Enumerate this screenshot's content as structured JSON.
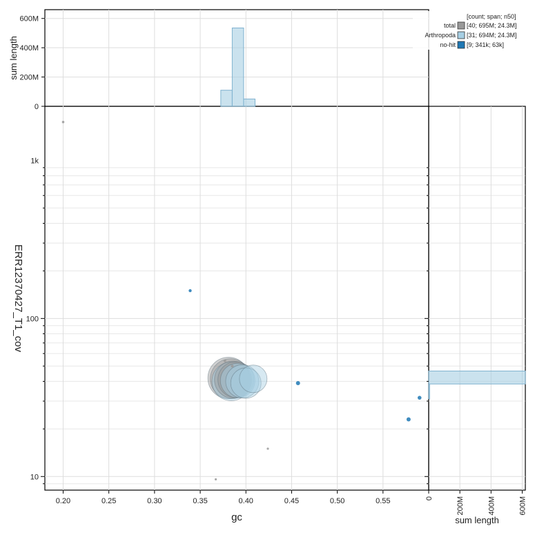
{
  "chart_data": {
    "type": "scatter",
    "xlabel": "gc",
    "ylabel": "ERR12370427_T1_cov",
    "x_ticks": [
      "0.20",
      "0.25",
      "0.30",
      "0.35",
      "0.40",
      "0.45",
      "0.50",
      "0.55"
    ],
    "x_tick_values": [
      0.2,
      0.25,
      0.3,
      0.35,
      0.4,
      0.45,
      0.5,
      0.55
    ],
    "xlim": [
      0.18,
      0.6
    ],
    "y_scale": "log",
    "ylim": [
      8.2,
      2200
    ],
    "y_ticks": [
      "10",
      "100",
      "1k"
    ],
    "y_tick_values": [
      10,
      100,
      1000
    ],
    "top_hist": {
      "ylabel": "sum length",
      "y_ticks": [
        "0",
        "200M",
        "400M",
        "600M"
      ],
      "y_tick_values": [
        0,
        200,
        400,
        600
      ],
      "ylim": [
        0,
        660
      ],
      "bins": [
        {
          "x0": 0.3725,
          "x1": 0.385,
          "value": 110
        },
        {
          "x0": 0.385,
          "x1": 0.3975,
          "value": 535
        },
        {
          "x0": 0.3975,
          "x1": 0.41,
          "value": 50
        }
      ]
    },
    "right_hist": {
      "xlabel": "sum length",
      "x_ticks": [
        "0",
        "200M",
        "400M",
        "600M"
      ],
      "x_tick_values": [
        0,
        200,
        400,
        600
      ],
      "xlim": [
        0,
        620
      ],
      "bins": [
        {
          "y0": 31.0,
          "y1": 38.5,
          "value": 6
        },
        {
          "y0": 38.5,
          "y1": 46.5,
          "value": 620
        }
      ]
    },
    "legend": {
      "position": "top-right",
      "header": "[count; span; n50]",
      "entries": [
        {
          "name": "total",
          "stats": "[40; 695M; 24.3M]",
          "color": "#999999"
        },
        {
          "name": "Arthropoda",
          "stats": "[31; 694M; 24.3M]",
          "color": "#a6cee3"
        },
        {
          "name": "no-hit",
          "stats": "[9; 341k; 63k]",
          "color": "#1f78b4"
        }
      ]
    },
    "points": [
      {
        "gc": 0.2,
        "cov": 1750,
        "size": 1.8,
        "group": "total"
      },
      {
        "gc": 0.339,
        "cov": 150,
        "size": 2.2,
        "group": "no-hit"
      },
      {
        "gc": 0.377,
        "cov": 54,
        "size": 2.0,
        "group": "total"
      },
      {
        "gc": 0.385,
        "cov": 50,
        "size": 2.0,
        "group": "total"
      },
      {
        "gc": 0.457,
        "cov": 39,
        "size": 3.0,
        "group": "no-hit"
      },
      {
        "gc": 0.59,
        "cov": 31.5,
        "size": 2.8,
        "group": "no-hit"
      },
      {
        "gc": 0.578,
        "cov": 23,
        "size": 3.0,
        "group": "no-hit"
      },
      {
        "gc": 0.424,
        "cov": 15,
        "size": 1.6,
        "group": "total"
      },
      {
        "gc": 0.367,
        "cov": 9.6,
        "size": 1.6,
        "group": "total"
      },
      {
        "gc": 0.381,
        "cov": 42,
        "size": 30,
        "group": "total"
      },
      {
        "gc": 0.383,
        "cov": 41.5,
        "size": 29,
        "group": "total"
      },
      {
        "gc": 0.386,
        "cov": 41,
        "size": 27,
        "group": "total"
      },
      {
        "gc": 0.389,
        "cov": 41,
        "size": 26,
        "group": "total"
      },
      {
        "gc": 0.384,
        "cov": 40,
        "size": 28,
        "group": "Arthropoda"
      },
      {
        "gc": 0.391,
        "cov": 40.5,
        "size": 25,
        "group": "Arthropoda"
      },
      {
        "gc": 0.396,
        "cov": 40,
        "size": 24,
        "group": "Arthropoda"
      },
      {
        "gc": 0.4,
        "cov": 39,
        "size": 22,
        "group": "Arthropoda"
      },
      {
        "gc": 0.408,
        "cov": 41.5,
        "size": 20,
        "group": "Arthropoda"
      }
    ]
  }
}
